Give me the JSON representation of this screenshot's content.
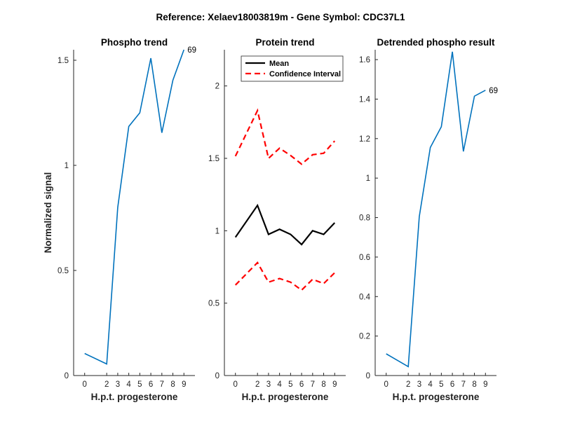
{
  "suptitle": "Reference:  Xelaev18003819m - Gene Symbol:  CDC37L1",
  "chart_data": [
    {
      "type": "line",
      "title": "Phospho trend",
      "xlabel": "H.p.t. progesterone",
      "ylabel": "Normalized signal",
      "xlim": [
        -1,
        10
      ],
      "ylim": [
        0,
        1.55
      ],
      "xticks": [
        0,
        2,
        3,
        4,
        5,
        6,
        7,
        8,
        9
      ],
      "yticks": [
        0,
        0.5,
        1,
        1.5
      ],
      "ytick_labels": [
        "0",
        "0.5",
        "1",
        "1.5"
      ],
      "grid": false,
      "series": [
        {
          "color": "#0072BD",
          "style": "solid",
          "x": [
            0,
            2,
            3,
            4,
            5,
            6,
            7,
            8,
            9
          ],
          "y": [
            0.105,
            0.055,
            0.8,
            1.185,
            1.25,
            1.51,
            1.155,
            1.405,
            1.55
          ]
        }
      ],
      "annotation": {
        "text": "69",
        "x": 9,
        "y": 1.55
      }
    },
    {
      "type": "line",
      "title": "Protein trend",
      "xlabel": "H.p.t. progesterone",
      "ylabel": "",
      "xlim": [
        -1,
        10
      ],
      "ylim": [
        0,
        2.25
      ],
      "xticks": [
        0,
        2,
        3,
        4,
        5,
        6,
        7,
        8,
        9
      ],
      "yticks": [
        0,
        0.5,
        1,
        1.5,
        2
      ],
      "ytick_labels": [
        "0",
        "0.5",
        "1",
        "1.5",
        "2"
      ],
      "grid": false,
      "legend": {
        "placement": "top-left"
      },
      "series": [
        {
          "name": "Mean",
          "color": "#000000",
          "style": "solid",
          "x": [
            0,
            2,
            3,
            4,
            5,
            6,
            7,
            8,
            9
          ],
          "y": [
            0.955,
            1.175,
            0.975,
            1.01,
            0.975,
            0.905,
            1.0,
            0.975,
            1.055
          ]
        },
        {
          "name": "Confidence Interval",
          "color": "#FF0000",
          "style": "dashed",
          "x": [
            0,
            2,
            3,
            4,
            5,
            6,
            7,
            8,
            9
          ],
          "y": [
            1.515,
            1.83,
            1.5,
            1.57,
            1.52,
            1.46,
            1.525,
            1.535,
            1.62
          ]
        },
        {
          "name": "",
          "color": "#FF0000",
          "style": "dashed",
          "x": [
            0,
            2,
            3,
            4,
            5,
            6,
            7,
            8,
            9
          ],
          "y": [
            0.625,
            0.78,
            0.645,
            0.67,
            0.645,
            0.59,
            0.665,
            0.635,
            0.71
          ]
        }
      ]
    },
    {
      "type": "line",
      "title": "Detrended phospho result",
      "xlabel": "H.p.t. progesterone",
      "ylabel": "",
      "xlim": [
        -1,
        10
      ],
      "ylim": [
        0,
        1.65
      ],
      "xticks": [
        0,
        2,
        3,
        4,
        5,
        6,
        7,
        8,
        9
      ],
      "yticks": [
        0,
        0.2,
        0.4,
        0.6,
        0.8,
        1,
        1.2,
        1.4,
        1.6
      ],
      "ytick_labels": [
        "0",
        "0.2",
        "0.4",
        "0.6",
        "0.8",
        "1",
        "1.2",
        "1.4",
        "1.6"
      ],
      "grid": false,
      "series": [
        {
          "color": "#0072BD",
          "style": "solid",
          "x": [
            0,
            2,
            3,
            4,
            5,
            6,
            7,
            8,
            9
          ],
          "y": [
            0.11,
            0.045,
            0.805,
            1.155,
            1.26,
            1.64,
            1.135,
            1.415,
            1.445
          ]
        }
      ],
      "annotation": {
        "text": "69",
        "x": 9,
        "y": 1.445
      }
    }
  ]
}
